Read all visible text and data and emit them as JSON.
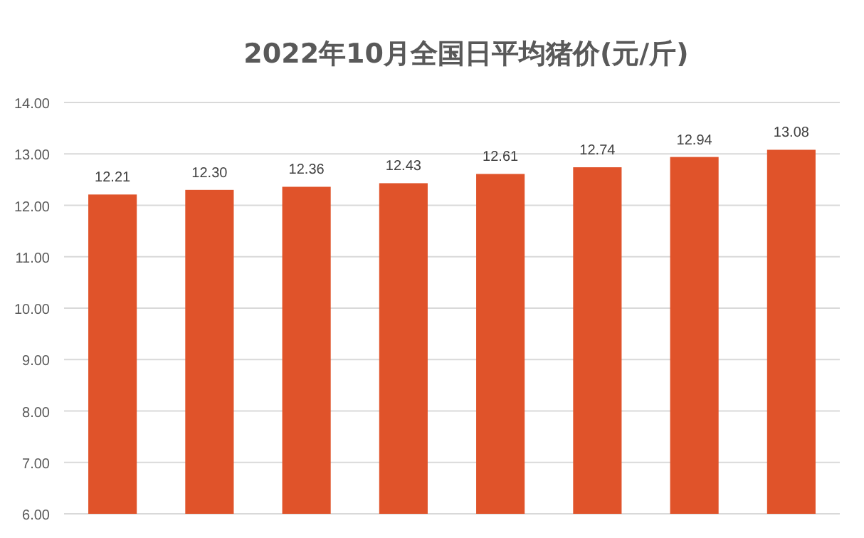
{
  "chart_data": {
    "type": "bar",
    "title": "2022年10月全国日平均猪价(元/斤)",
    "categories": [
      null,
      null,
      null,
      null,
      null,
      null,
      null,
      null
    ],
    "values": [
      12.21,
      12.3,
      12.36,
      12.43,
      12.61,
      12.74,
      12.94,
      13.08
    ],
    "value_labels": [
      "12.21",
      "12.30",
      "12.36",
      "12.43",
      "12.61",
      "12.74",
      "12.94",
      "13.08"
    ],
    "color": "#e0532a",
    "ylim": [
      6,
      14
    ],
    "yticks": [
      {
        "value": 6,
        "label": "6.00"
      },
      {
        "value": 7,
        "label": "7.00"
      },
      {
        "value": 8,
        "label": "8.00"
      },
      {
        "value": 9,
        "label": "9.00"
      },
      {
        "value": 10,
        "label": "10.00"
      },
      {
        "value": 11,
        "label": "11.00"
      },
      {
        "value": 12,
        "label": "12.00"
      },
      {
        "value": 13,
        "label": "13.00"
      },
      {
        "value": 14,
        "label": "14.00"
      }
    ],
    "grid": "y"
  }
}
